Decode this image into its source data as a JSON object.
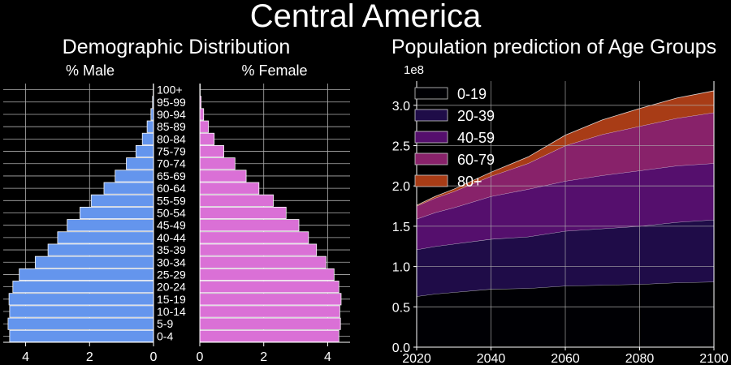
{
  "figure": {
    "title": "Central America",
    "pyramid_title": "Demographic Distribution",
    "background": "#000000",
    "grid_color": "#b0b0b0"
  },
  "chart_data": [
    {
      "type": "bar",
      "orientation": "horizontal",
      "title": "% Male",
      "categories": [
        "0-4",
        "5-9",
        "10-14",
        "15-19",
        "20-24",
        "25-29",
        "30-34",
        "35-39",
        "40-44",
        "45-49",
        "50-54",
        "55-59",
        "60-64",
        "65-69",
        "70-74",
        "75-79",
        "80-84",
        "85-89",
        "90-94",
        "95-99",
        "100+"
      ],
      "values": [
        4.5,
        4.55,
        4.5,
        4.52,
        4.4,
        4.2,
        3.7,
        3.3,
        3.0,
        2.7,
        2.3,
        1.95,
        1.55,
        1.2,
        0.85,
        0.55,
        0.35,
        0.2,
        0.08,
        0.03,
        0.01
      ],
      "xlim": [
        4.7,
        0
      ],
      "xticks": [
        4,
        2,
        0
      ],
      "color": "#6495ed",
      "grid": true
    },
    {
      "type": "bar",
      "orientation": "horizontal",
      "title": "% Female",
      "categories": [
        "0-4",
        "5-9",
        "10-14",
        "15-19",
        "20-24",
        "25-29",
        "30-34",
        "35-39",
        "40-44",
        "45-49",
        "50-54",
        "55-59",
        "60-64",
        "65-69",
        "70-74",
        "75-79",
        "80-84",
        "85-89",
        "90-94",
        "95-99",
        "100+"
      ],
      "values": [
        4.35,
        4.4,
        4.38,
        4.42,
        4.35,
        4.2,
        3.95,
        3.65,
        3.4,
        3.1,
        2.7,
        2.3,
        1.85,
        1.45,
        1.1,
        0.75,
        0.45,
        0.27,
        0.12,
        0.04,
        0.01
      ],
      "xlim": [
        0,
        4.7
      ],
      "xticks": [
        0,
        2,
        4
      ],
      "color": "#da70d6",
      "grid": true
    },
    {
      "type": "area",
      "stacked": true,
      "title": "Population prediction of Age Groups",
      "xlim": [
        2020,
        2100
      ],
      "ylim": [
        0,
        3.3
      ],
      "xticks": [
        2020,
        2040,
        2060,
        2080,
        2100
      ],
      "yticks": [
        0.0,
        0.5,
        1.0,
        1.5,
        2.0,
        2.5,
        3.0
      ],
      "y_multiplier": "1e8",
      "grid": true,
      "legend_position": "upper-left",
      "x": [
        2020,
        2025,
        2030,
        2040,
        2050,
        2060,
        2070,
        2080,
        2090,
        2100
      ],
      "series": [
        {
          "name": "0-19",
          "color": "#000004",
          "values": [
            0.63,
            0.66,
            0.68,
            0.72,
            0.73,
            0.76,
            0.77,
            0.78,
            0.8,
            0.81
          ]
        },
        {
          "name": "20-39",
          "color": "#1f0c48",
          "values": [
            0.58,
            0.59,
            0.6,
            0.62,
            0.64,
            0.68,
            0.7,
            0.72,
            0.75,
            0.77
          ]
        },
        {
          "name": "40-59",
          "color": "#550f6d",
          "values": [
            0.38,
            0.42,
            0.45,
            0.53,
            0.59,
            0.62,
            0.66,
            0.69,
            0.7,
            0.7
          ]
        },
        {
          "name": "60-79",
          "color": "#88226a",
          "values": [
            0.16,
            0.18,
            0.2,
            0.25,
            0.32,
            0.44,
            0.51,
            0.55,
            0.59,
            0.63
          ]
        },
        {
          "name": "80+",
          "color": "#a83c16",
          "values": [
            0.01,
            0.02,
            0.03,
            0.05,
            0.08,
            0.13,
            0.18,
            0.22,
            0.25,
            0.27
          ]
        }
      ]
    }
  ]
}
